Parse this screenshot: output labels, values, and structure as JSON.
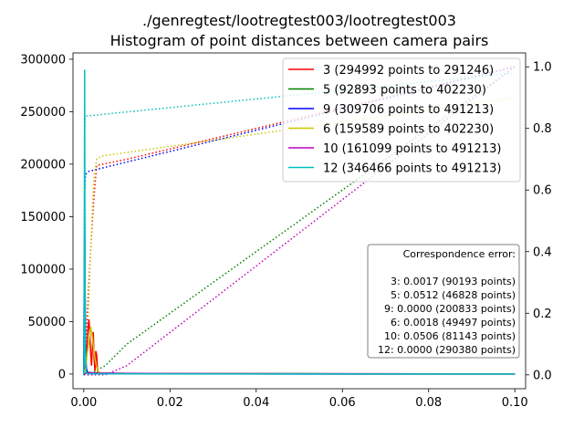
{
  "chart_data": {
    "type": "line",
    "title": "./genregtest/lootregtest003/lootregtest003",
    "subtitle": "Histogram of point distances between camera pairs",
    "xlim": [
      -0.0025,
      0.1025
    ],
    "ylim": [
      -14000,
      306000
    ],
    "y2lim": [
      -0.045,
      1.045
    ],
    "x_ticks": [
      0.0,
      0.02,
      0.04,
      0.06,
      0.08,
      0.1
    ],
    "x_tick_labels": [
      "0.00",
      "0.02",
      "0.04",
      "0.06",
      "0.08",
      "0.10"
    ],
    "y_ticks": [
      0,
      50000,
      100000,
      150000,
      200000,
      250000,
      300000
    ],
    "y_tick_labels": [
      "0",
      "50000",
      "100000",
      "150000",
      "200000",
      "250000",
      "300000"
    ],
    "y2_ticks": [
      0.0,
      0.2,
      0.4,
      0.6,
      0.8,
      1.0
    ],
    "y2_tick_labels": [
      "0.0",
      "0.2",
      "0.4",
      "0.6",
      "0.8",
      "1.0"
    ],
    "legend_position": "upper-right",
    "series": [
      {
        "name": "3 (294992 points to 291246)",
        "color": "#ff0000",
        "histogram": [
          [
            0.0,
            0
          ],
          [
            0.0002,
            3000
          ],
          [
            0.0005,
            15000
          ],
          [
            0.0008,
            30000
          ],
          [
            0.001,
            45000
          ],
          [
            0.0012,
            52000
          ],
          [
            0.0014,
            38000
          ],
          [
            0.0016,
            20000
          ],
          [
            0.0018,
            8000
          ],
          [
            0.002,
            25000
          ],
          [
            0.0022,
            40000
          ],
          [
            0.0024,
            15000
          ],
          [
            0.0026,
            3000
          ],
          [
            0.0028,
            22000
          ],
          [
            0.003,
            18000
          ],
          [
            0.0032,
            2000
          ],
          [
            0.004,
            500
          ],
          [
            0.02,
            200
          ],
          [
            0.05,
            100
          ],
          [
            0.1,
            0
          ]
        ],
        "cumulative": [
          [
            0.0,
            0.0
          ],
          [
            0.0005,
            0.1
          ],
          [
            0.001,
            0.25
          ],
          [
            0.0015,
            0.38
          ],
          [
            0.002,
            0.5
          ],
          [
            0.0025,
            0.6
          ],
          [
            0.003,
            0.68
          ],
          [
            0.01,
            0.7
          ],
          [
            0.1,
            1.0
          ]
        ]
      },
      {
        "name": "5 (92893 points to 402230)",
        "color": "#008000",
        "histogram": [
          [
            0.0,
            0
          ],
          [
            0.0005,
            800
          ],
          [
            0.001,
            1500
          ],
          [
            0.002,
            1200
          ],
          [
            0.004,
            900
          ],
          [
            0.008,
            700
          ],
          [
            0.02,
            500
          ],
          [
            0.05,
            300
          ],
          [
            0.1,
            100
          ]
        ],
        "cumulative": [
          [
            0.0,
            0.0
          ],
          [
            0.001,
            0.0
          ],
          [
            0.005,
            0.03
          ],
          [
            0.01,
            0.1
          ],
          [
            0.1,
            1.0
          ]
        ]
      },
      {
        "name": "9 (309706 points to 491213)",
        "color": "#0000ff",
        "histogram": [
          [
            0.0,
            0
          ],
          [
            0.0002,
            150000
          ],
          [
            0.0004,
            30000
          ],
          [
            0.0006,
            5000
          ],
          [
            0.001,
            500
          ],
          [
            0.005,
            200
          ],
          [
            0.05,
            50
          ],
          [
            0.1,
            0
          ]
        ],
        "cumulative": [
          [
            0.0,
            0.0
          ],
          [
            0.0002,
            0.6
          ],
          [
            0.0004,
            0.65
          ],
          [
            0.001,
            0.66
          ],
          [
            0.1,
            1.0
          ]
        ]
      },
      {
        "name": "6 (159589 points to 402230)",
        "color": "#c8c800",
        "histogram": [
          [
            0.0,
            0
          ],
          [
            0.0004,
            5000
          ],
          [
            0.0008,
            20000
          ],
          [
            0.0012,
            30000
          ],
          [
            0.0016,
            45000
          ],
          [
            0.002,
            35000
          ],
          [
            0.0024,
            20000
          ],
          [
            0.0028,
            10000
          ],
          [
            0.0032,
            3000
          ],
          [
            0.004,
            500
          ],
          [
            0.03,
            200
          ],
          [
            0.1,
            0
          ]
        ],
        "cumulative": [
          [
            0.0,
            0.0
          ],
          [
            0.0008,
            0.1
          ],
          [
            0.0012,
            0.25
          ],
          [
            0.0016,
            0.4
          ],
          [
            0.002,
            0.55
          ],
          [
            0.0024,
            0.65
          ],
          [
            0.003,
            0.7
          ],
          [
            0.004,
            0.71
          ],
          [
            0.1,
            0.9
          ]
        ]
      },
      {
        "name": "10 (161099 points to 491213)",
        "color": "#bf00bf",
        "histogram": [
          [
            0.0,
            0
          ],
          [
            0.0005,
            600
          ],
          [
            0.001,
            1200
          ],
          [
            0.003,
            900
          ],
          [
            0.01,
            600
          ],
          [
            0.03,
            400
          ],
          [
            0.06,
            250
          ],
          [
            0.1,
            100
          ]
        ],
        "cumulative": [
          [
            0.0,
            0.0
          ],
          [
            0.005,
            0.0
          ],
          [
            0.01,
            0.03
          ],
          [
            0.1,
            1.0
          ]
        ]
      },
      {
        "name": "12 (346466 points to 491213)",
        "color": "#00bfbf",
        "histogram": [
          [
            0.0,
            0
          ],
          [
            0.0001,
            20000
          ],
          [
            0.0002,
            290000
          ],
          [
            0.0003,
            80000
          ],
          [
            0.0004,
            10000
          ],
          [
            0.0006,
            1000
          ],
          [
            0.001,
            300
          ],
          [
            0.005,
            100
          ],
          [
            0.1,
            0
          ]
        ],
        "cumulative": [
          [
            0.0,
            0.0
          ],
          [
            0.0001,
            0.3
          ],
          [
            0.0002,
            0.8
          ],
          [
            0.0003,
            0.83
          ],
          [
            0.0005,
            0.84
          ],
          [
            0.1,
            0.98
          ]
        ]
      }
    ],
    "correspondence_error": {
      "title": "Correspondence error:",
      "lines": [
        "3: 0.0017 (90193 points)",
        "5: 0.0512 (46828 points)",
        "9: 0.0000 (200833 points)",
        "6: 0.0018 (49497 points)",
        "10: 0.0506 (81143 points)",
        "12: 0.0000 (290380 points)"
      ]
    }
  }
}
